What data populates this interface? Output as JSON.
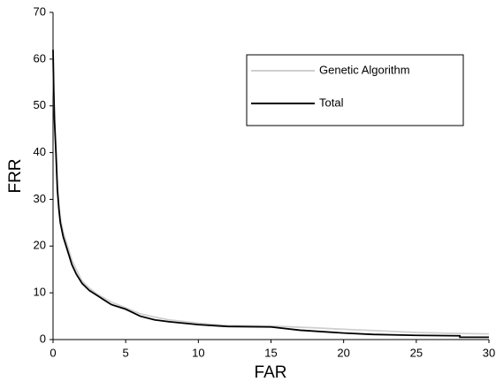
{
  "chart_data": {
    "type": "line",
    "x_label": "FAR",
    "y_label": "FRR",
    "xlim": [
      0,
      30
    ],
    "xticks": [
      0,
      5,
      10,
      15,
      20,
      25,
      30
    ],
    "ylim": [
      0,
      70
    ],
    "yticks": [
      0,
      10,
      20,
      30,
      40,
      50,
      60,
      70
    ],
    "grid": false,
    "legend_position": "upper right",
    "series": [
      {
        "name": "Genetic Algorithm",
        "color": "#cfcfcf",
        "x": [
          0,
          0.05,
          0.1,
          0.2,
          0.3,
          0.4,
          0.5,
          0.7,
          1,
          1.3,
          1.6,
          2,
          2.5,
          3,
          4,
          5,
          6,
          7,
          8,
          10,
          12,
          15,
          18,
          20,
          23,
          25,
          28,
          30
        ],
        "values": [
          60,
          52,
          46,
          40,
          33,
          29,
          26,
          23,
          20,
          17,
          15,
          12.5,
          11,
          9.8,
          8,
          6.8,
          5.5,
          4.8,
          4.2,
          3.5,
          3,
          2.9,
          2.5,
          2.2,
          1.8,
          1.5,
          1.3,
          1.2
        ]
      },
      {
        "name": "Total",
        "color": "#000000",
        "x": [
          0,
          0.05,
          0.1,
          0.2,
          0.3,
          0.4,
          0.5,
          0.7,
          1,
          1.3,
          1.6,
          2,
          2.5,
          3,
          3.5,
          4,
          5,
          6,
          7,
          8,
          10,
          12,
          15,
          17,
          20,
          22,
          25,
          28,
          28,
          30
        ],
        "values": [
          62,
          53,
          47,
          40,
          32,
          28,
          25,
          22,
          19,
          16,
          14,
          12,
          10.5,
          9.5,
          8.5,
          7.5,
          6.5,
          5,
          4.2,
          3.8,
          3.2,
          2.8,
          2.7,
          2,
          1.4,
          1.1,
          0.9,
          0.8,
          0.5,
          0.5
        ]
      }
    ]
  }
}
